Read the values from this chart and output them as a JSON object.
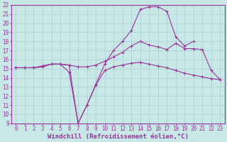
{
  "background_color": "#c8e8e8",
  "grid_color": "#aacccc",
  "line_color": "#993399",
  "xlabel": "Windchill (Refroidissement éolien,°C)",
  "xlim": [
    -0.5,
    23.5
  ],
  "ylim": [
    9,
    22
  ],
  "xticks": [
    0,
    1,
    2,
    3,
    4,
    5,
    6,
    7,
    8,
    9,
    10,
    11,
    12,
    13,
    14,
    15,
    16,
    17,
    18,
    19,
    20,
    21,
    22,
    23
  ],
  "yticks": [
    9,
    10,
    11,
    12,
    13,
    14,
    15,
    16,
    17,
    18,
    19,
    20,
    21,
    22
  ],
  "line1_x": [
    0,
    1,
    2,
    3,
    4,
    5,
    6,
    7,
    8,
    9,
    10,
    11,
    12,
    13,
    14,
    15,
    16,
    17,
    18,
    19,
    20,
    21,
    22,
    23
  ],
  "line1_y": [
    15.1,
    15.1,
    15.1,
    15.2,
    15.5,
    15.5,
    14.6,
    9.0,
    11.0,
    13.2,
    14.8,
    15.2,
    15.4,
    15.6,
    15.7,
    15.5,
    15.3,
    15.1,
    14.8,
    14.5,
    14.3,
    14.1,
    13.9,
    13.8
  ],
  "line2_x": [
    0,
    1,
    2,
    3,
    4,
    5,
    6,
    7,
    8,
    9,
    10,
    11,
    12,
    13,
    14,
    15,
    16,
    17,
    18,
    19,
    20,
    21,
    22,
    23
  ],
  "line2_y": [
    15.1,
    15.1,
    15.1,
    15.3,
    15.5,
    15.5,
    15.4,
    15.2,
    15.2,
    15.4,
    15.8,
    16.3,
    16.8,
    17.5,
    18.0,
    17.6,
    17.4,
    17.1,
    17.8,
    17.2,
    17.2,
    17.1,
    14.8,
    13.8
  ],
  "line3_x": [
    0,
    1,
    2,
    3,
    4,
    5,
    6,
    7,
    8,
    9,
    10,
    11,
    12,
    13,
    14,
    15,
    16,
    17,
    18,
    19,
    20
  ],
  "line3_y": [
    15.1,
    15.1,
    15.1,
    15.3,
    15.5,
    15.5,
    15.4,
    9.0,
    11.0,
    13.3,
    15.5,
    17.0,
    18.0,
    19.2,
    21.5,
    21.8,
    21.8,
    21.3,
    18.5,
    17.5,
    18.0
  ],
  "tick_fontsize": 5.5,
  "label_fontsize": 6.5
}
